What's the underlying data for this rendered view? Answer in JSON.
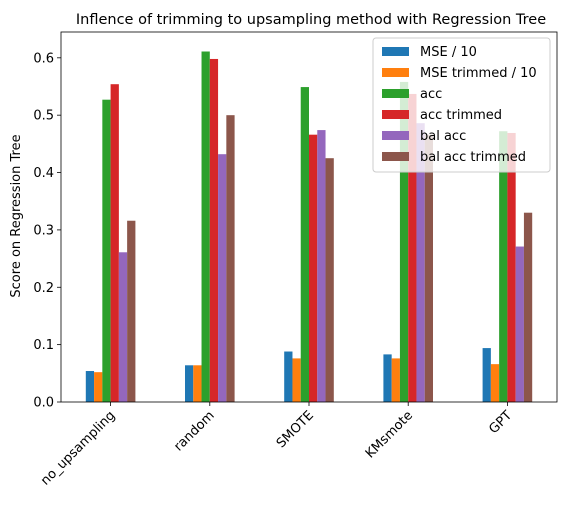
{
  "chart_data": {
    "type": "bar",
    "title": "Inflence of trimming to upsampling method with Regression Tree",
    "xlabel": "",
    "ylabel": "Score on Regression Tree",
    "ylim": [
      0,
      0.645
    ],
    "yticks": [
      0.0,
      0.1,
      0.2,
      0.3,
      0.4,
      0.5,
      0.6
    ],
    "ytick_labels": [
      "0.0",
      "0.1",
      "0.2",
      "0.3",
      "0.4",
      "0.5",
      "0.6"
    ],
    "categories": [
      "no_upsampling",
      "random",
      "SMOTE",
      "KMsmote",
      "GPT"
    ],
    "grid": false,
    "legend_position": "top-right",
    "series": [
      {
        "name": "MSE / 10",
        "color": "#1f77b4",
        "values": [
          0.054,
          0.064,
          0.088,
          0.083,
          0.094
        ]
      },
      {
        "name": "MSE trimmed / 10",
        "color": "#ff7f0e",
        "values": [
          0.052,
          0.064,
          0.076,
          0.076,
          0.066
        ]
      },
      {
        "name": "acc",
        "color": "#2ca02c",
        "values": [
          0.527,
          0.611,
          0.549,
          0.558,
          0.472
        ]
      },
      {
        "name": "acc trimmed",
        "color": "#d62728",
        "values": [
          0.554,
          0.598,
          0.466,
          0.537,
          0.469
        ]
      },
      {
        "name": "bal acc",
        "color": "#9467bd",
        "values": [
          0.261,
          0.432,
          0.474,
          0.486,
          0.271
        ]
      },
      {
        "name": "bal acc trimmed",
        "color": "#8c564b",
        "values": [
          0.316,
          0.5,
          0.425,
          0.466,
          0.33
        ]
      }
    ]
  }
}
